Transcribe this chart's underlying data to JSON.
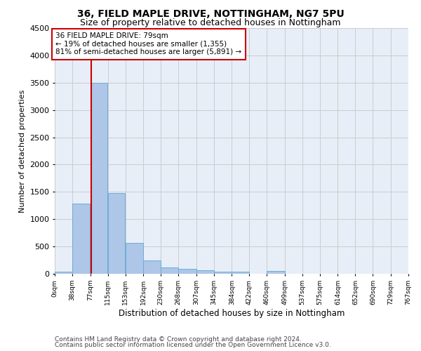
{
  "title1": "36, FIELD MAPLE DRIVE, NOTTINGHAM, NG7 5PU",
  "title2": "Size of property relative to detached houses in Nottingham",
  "xlabel": "Distribution of detached houses by size in Nottingham",
  "ylabel": "Number of detached properties",
  "footer1": "Contains HM Land Registry data © Crown copyright and database right 2024.",
  "footer2": "Contains public sector information licensed under the Open Government Licence v3.0.",
  "property_size": 79,
  "annotation_title": "36 FIELD MAPLE DRIVE: 79sqm",
  "annotation_line1": "← 19% of detached houses are smaller (1,355)",
  "annotation_line2": "81% of semi-detached houses are larger (5,891) →",
  "bin_edges": [
    0,
    38,
    77,
    115,
    153,
    192,
    230,
    268,
    307,
    345,
    384,
    422,
    460,
    499,
    537,
    575,
    614,
    652,
    690,
    729,
    767
  ],
  "bar_heights": [
    40,
    1280,
    3500,
    1480,
    570,
    240,
    115,
    85,
    60,
    45,
    35,
    0,
    50,
    0,
    0,
    0,
    0,
    0,
    0,
    0
  ],
  "bar_color": "#aec6e8",
  "bar_edge_color": "#6baed6",
  "vline_x": 79,
  "vline_color": "#cc0000",
  "ylim": [
    0,
    4500
  ],
  "yticks": [
    0,
    500,
    1000,
    1500,
    2000,
    2500,
    3000,
    3500,
    4000,
    4500
  ],
  "grid_color": "#cccccc",
  "background_color": "#e8eef8",
  "annotation_box_color": "#cc0000",
  "annotation_text_color": "#000000"
}
